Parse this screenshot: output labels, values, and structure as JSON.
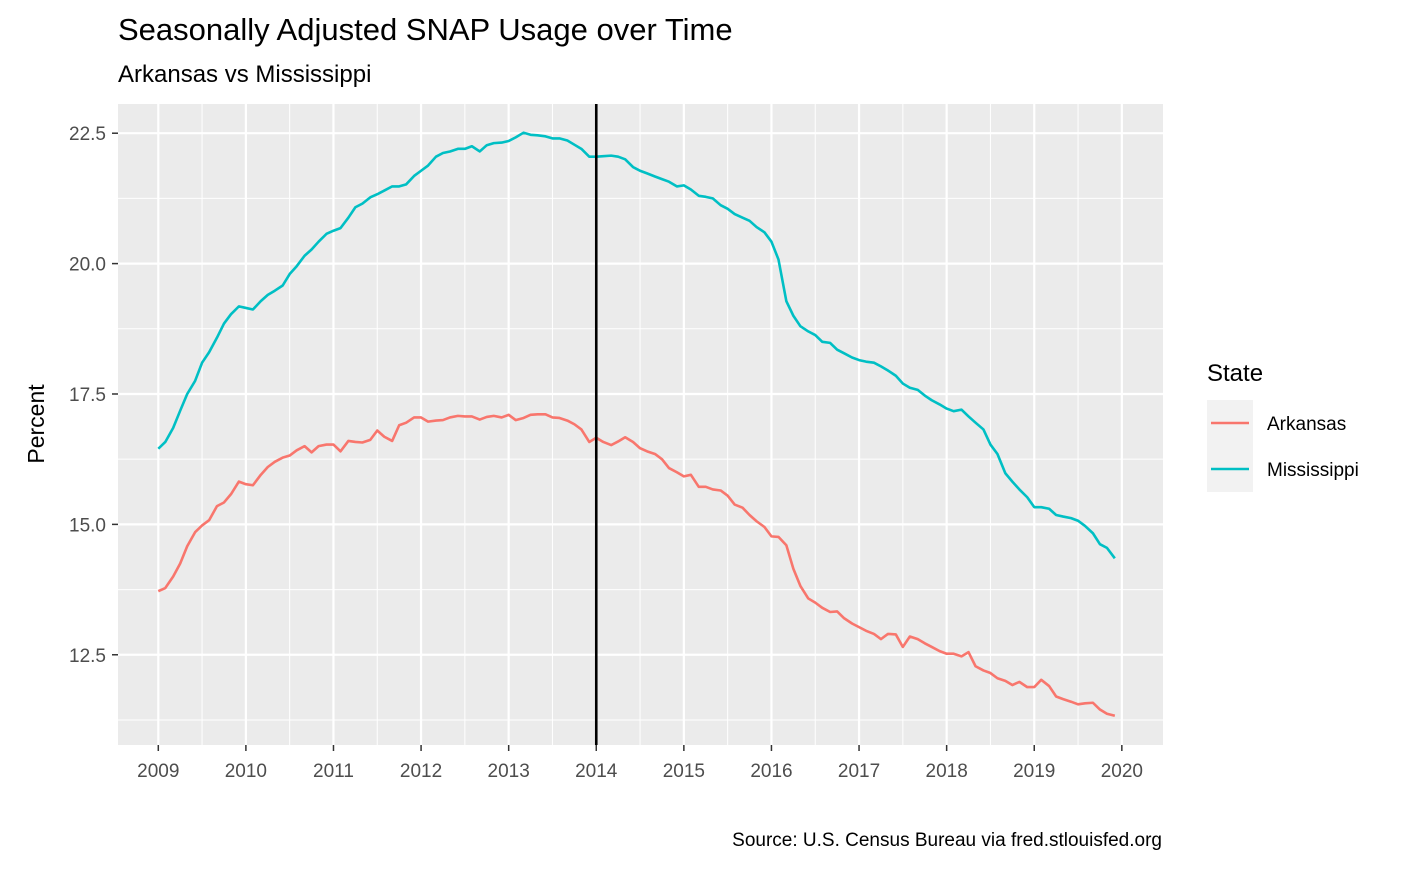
{
  "chart_data": {
    "type": "line",
    "title": "Seasonally Adjusted SNAP Usage over Time",
    "subtitle": "Arkansas vs Mississippi",
    "xlabel": "",
    "ylabel": "Percent",
    "caption": "Source: U.S. Census Bureau via fred.stlouisfed.org",
    "xlim": [
      2008.54,
      2020.47
    ],
    "ylim": [
      10.77,
      23.06
    ],
    "x_ticks": [
      2009,
      2010,
      2011,
      2012,
      2013,
      2014,
      2015,
      2016,
      2017,
      2018,
      2019,
      2020
    ],
    "x_tick_labels": [
      "2009",
      "2010",
      "2011",
      "2012",
      "2013",
      "2014",
      "2015",
      "2016",
      "2017",
      "2018",
      "2019",
      "2020"
    ],
    "y_ticks": [
      12.5,
      15.0,
      17.5,
      20.0,
      22.5
    ],
    "y_tick_labels": [
      "12.5",
      "15.0",
      "17.5",
      "20.0",
      "22.5"
    ],
    "vline_x": 2014.0,
    "vline_color": "#000000",
    "grid": true,
    "panel_background": "#ebebeb",
    "legend": {
      "title": "State",
      "position": "right"
    },
    "series": [
      {
        "name": "Arkansas",
        "color": "#f8766d",
        "points": [
          [
            2009.0,
            13.72
          ],
          [
            2009.08,
            13.78
          ],
          [
            2009.17,
            14.0
          ],
          [
            2009.25,
            14.25
          ],
          [
            2009.33,
            14.58
          ],
          [
            2009.42,
            14.85
          ],
          [
            2009.5,
            14.98
          ],
          [
            2009.58,
            15.08
          ],
          [
            2009.67,
            15.35
          ],
          [
            2009.75,
            15.42
          ],
          [
            2009.83,
            15.58
          ],
          [
            2009.92,
            15.82
          ],
          [
            2010.0,
            15.77
          ],
          [
            2010.08,
            15.75
          ],
          [
            2010.17,
            15.95
          ],
          [
            2010.25,
            16.1
          ],
          [
            2010.33,
            16.2
          ],
          [
            2010.42,
            16.28
          ],
          [
            2010.5,
            16.32
          ],
          [
            2010.58,
            16.42
          ],
          [
            2010.67,
            16.5
          ],
          [
            2010.75,
            16.38
          ],
          [
            2010.83,
            16.5
          ],
          [
            2010.92,
            16.53
          ],
          [
            2011.0,
            16.53
          ],
          [
            2011.08,
            16.4
          ],
          [
            2011.17,
            16.6
          ],
          [
            2011.25,
            16.58
          ],
          [
            2011.33,
            16.57
          ],
          [
            2011.42,
            16.62
          ],
          [
            2011.5,
            16.8
          ],
          [
            2011.58,
            16.68
          ],
          [
            2011.67,
            16.6
          ],
          [
            2011.75,
            16.9
          ],
          [
            2011.83,
            16.95
          ],
          [
            2011.92,
            17.05
          ],
          [
            2012.0,
            17.05
          ],
          [
            2012.08,
            16.97
          ],
          [
            2012.17,
            16.99
          ],
          [
            2012.25,
            17.0
          ],
          [
            2012.33,
            17.05
          ],
          [
            2012.42,
            17.08
          ],
          [
            2012.5,
            17.07
          ],
          [
            2012.58,
            17.07
          ],
          [
            2012.67,
            17.01
          ],
          [
            2012.75,
            17.06
          ],
          [
            2012.83,
            17.08
          ],
          [
            2012.92,
            17.05
          ],
          [
            2013.0,
            17.1
          ],
          [
            2013.08,
            17.0
          ],
          [
            2013.17,
            17.04
          ],
          [
            2013.25,
            17.1
          ],
          [
            2013.33,
            17.11
          ],
          [
            2013.42,
            17.11
          ],
          [
            2013.5,
            17.05
          ],
          [
            2013.58,
            17.04
          ],
          [
            2013.67,
            16.99
          ],
          [
            2013.75,
            16.92
          ],
          [
            2013.83,
            16.82
          ],
          [
            2013.92,
            16.58
          ],
          [
            2014.0,
            16.66
          ],
          [
            2014.08,
            16.58
          ],
          [
            2014.17,
            16.52
          ],
          [
            2014.25,
            16.59
          ],
          [
            2014.33,
            16.67
          ],
          [
            2014.42,
            16.58
          ],
          [
            2014.5,
            16.46
          ],
          [
            2014.58,
            16.4
          ],
          [
            2014.67,
            16.35
          ],
          [
            2014.75,
            16.25
          ],
          [
            2014.83,
            16.08
          ],
          [
            2014.92,
            16.0
          ],
          [
            2015.0,
            15.92
          ],
          [
            2015.08,
            15.95
          ],
          [
            2015.17,
            15.72
          ],
          [
            2015.25,
            15.72
          ],
          [
            2015.33,
            15.67
          ],
          [
            2015.42,
            15.65
          ],
          [
            2015.5,
            15.55
          ],
          [
            2015.58,
            15.38
          ],
          [
            2015.67,
            15.32
          ],
          [
            2015.75,
            15.18
          ],
          [
            2015.83,
            15.06
          ],
          [
            2015.92,
            14.95
          ],
          [
            2016.0,
            14.77
          ],
          [
            2016.08,
            14.76
          ],
          [
            2016.17,
            14.6
          ],
          [
            2016.25,
            14.15
          ],
          [
            2016.33,
            13.82
          ],
          [
            2016.42,
            13.58
          ],
          [
            2016.5,
            13.5
          ],
          [
            2016.58,
            13.4
          ],
          [
            2016.67,
            13.32
          ],
          [
            2016.75,
            13.33
          ],
          [
            2016.83,
            13.2
          ],
          [
            2016.92,
            13.1
          ],
          [
            2017.0,
            13.03
          ],
          [
            2017.08,
            12.96
          ],
          [
            2017.17,
            12.9
          ],
          [
            2017.25,
            12.8
          ],
          [
            2017.33,
            12.9
          ],
          [
            2017.42,
            12.89
          ],
          [
            2017.5,
            12.65
          ],
          [
            2017.58,
            12.85
          ],
          [
            2017.67,
            12.8
          ],
          [
            2017.75,
            12.72
          ],
          [
            2017.83,
            12.65
          ],
          [
            2017.92,
            12.57
          ],
          [
            2018.0,
            12.52
          ],
          [
            2018.08,
            12.52
          ],
          [
            2018.17,
            12.47
          ],
          [
            2018.25,
            12.55
          ],
          [
            2018.33,
            12.28
          ],
          [
            2018.42,
            12.2
          ],
          [
            2018.5,
            12.15
          ],
          [
            2018.58,
            12.05
          ],
          [
            2018.67,
            12.0
          ],
          [
            2018.75,
            11.92
          ],
          [
            2018.83,
            11.98
          ],
          [
            2018.92,
            11.88
          ],
          [
            2019.0,
            11.88
          ],
          [
            2019.08,
            12.02
          ],
          [
            2019.17,
            11.9
          ],
          [
            2019.25,
            11.7
          ],
          [
            2019.33,
            11.65
          ],
          [
            2019.42,
            11.6
          ],
          [
            2019.5,
            11.55
          ],
          [
            2019.58,
            11.57
          ],
          [
            2019.67,
            11.58
          ],
          [
            2019.75,
            11.45
          ],
          [
            2019.83,
            11.37
          ],
          [
            2019.92,
            11.33
          ]
        ]
      },
      {
        "name": "Mississippi",
        "color": "#00bfc4",
        "points": [
          [
            2009.0,
            16.45
          ],
          [
            2009.08,
            16.58
          ],
          [
            2009.17,
            16.85
          ],
          [
            2009.25,
            17.18
          ],
          [
            2009.33,
            17.5
          ],
          [
            2009.42,
            17.75
          ],
          [
            2009.5,
            18.1
          ],
          [
            2009.58,
            18.3
          ],
          [
            2009.67,
            18.58
          ],
          [
            2009.75,
            18.85
          ],
          [
            2009.83,
            19.03
          ],
          [
            2009.92,
            19.18
          ],
          [
            2010.0,
            19.15
          ],
          [
            2010.08,
            19.12
          ],
          [
            2010.17,
            19.28
          ],
          [
            2010.25,
            19.4
          ],
          [
            2010.33,
            19.48
          ],
          [
            2010.42,
            19.58
          ],
          [
            2010.5,
            19.8
          ],
          [
            2010.58,
            19.95
          ],
          [
            2010.67,
            20.15
          ],
          [
            2010.75,
            20.27
          ],
          [
            2010.83,
            20.42
          ],
          [
            2010.92,
            20.57
          ],
          [
            2011.0,
            20.63
          ],
          [
            2011.08,
            20.68
          ],
          [
            2011.17,
            20.88
          ],
          [
            2011.25,
            21.08
          ],
          [
            2011.33,
            21.15
          ],
          [
            2011.42,
            21.27
          ],
          [
            2011.5,
            21.33
          ],
          [
            2011.58,
            21.4
          ],
          [
            2011.67,
            21.48
          ],
          [
            2011.75,
            21.48
          ],
          [
            2011.83,
            21.52
          ],
          [
            2011.92,
            21.68
          ],
          [
            2012.0,
            21.78
          ],
          [
            2012.08,
            21.88
          ],
          [
            2012.17,
            22.05
          ],
          [
            2012.25,
            22.12
          ],
          [
            2012.33,
            22.15
          ],
          [
            2012.42,
            22.2
          ],
          [
            2012.5,
            22.2
          ],
          [
            2012.58,
            22.25
          ],
          [
            2012.67,
            22.15
          ],
          [
            2012.75,
            22.27
          ],
          [
            2012.83,
            22.31
          ],
          [
            2012.92,
            22.32
          ],
          [
            2013.0,
            22.35
          ],
          [
            2013.08,
            22.42
          ],
          [
            2013.17,
            22.51
          ],
          [
            2013.25,
            22.47
          ],
          [
            2013.33,
            22.46
          ],
          [
            2013.42,
            22.44
          ],
          [
            2013.5,
            22.4
          ],
          [
            2013.58,
            22.4
          ],
          [
            2013.67,
            22.36
          ],
          [
            2013.75,
            22.28
          ],
          [
            2013.83,
            22.2
          ],
          [
            2013.92,
            22.05
          ],
          [
            2014.0,
            22.05
          ],
          [
            2014.08,
            22.06
          ],
          [
            2014.17,
            22.07
          ],
          [
            2014.25,
            22.05
          ],
          [
            2014.33,
            22.0
          ],
          [
            2014.42,
            21.85
          ],
          [
            2014.5,
            21.78
          ],
          [
            2014.58,
            21.73
          ],
          [
            2014.67,
            21.67
          ],
          [
            2014.75,
            21.62
          ],
          [
            2014.83,
            21.57
          ],
          [
            2014.92,
            21.48
          ],
          [
            2015.0,
            21.5
          ],
          [
            2015.08,
            21.42
          ],
          [
            2015.17,
            21.3
          ],
          [
            2015.25,
            21.28
          ],
          [
            2015.33,
            21.25
          ],
          [
            2015.42,
            21.12
          ],
          [
            2015.5,
            21.05
          ],
          [
            2015.58,
            20.95
          ],
          [
            2015.67,
            20.88
          ],
          [
            2015.75,
            20.82
          ],
          [
            2015.83,
            20.7
          ],
          [
            2015.92,
            20.6
          ],
          [
            2016.0,
            20.42
          ],
          [
            2016.08,
            20.08
          ],
          [
            2016.17,
            19.28
          ],
          [
            2016.25,
            19.0
          ],
          [
            2016.33,
            18.8
          ],
          [
            2016.42,
            18.7
          ],
          [
            2016.5,
            18.63
          ],
          [
            2016.58,
            18.5
          ],
          [
            2016.67,
            18.48
          ],
          [
            2016.75,
            18.35
          ],
          [
            2016.83,
            18.28
          ],
          [
            2016.92,
            18.2
          ],
          [
            2017.0,
            18.15
          ],
          [
            2017.08,
            18.12
          ],
          [
            2017.17,
            18.1
          ],
          [
            2017.25,
            18.03
          ],
          [
            2017.33,
            17.95
          ],
          [
            2017.42,
            17.85
          ],
          [
            2017.5,
            17.7
          ],
          [
            2017.58,
            17.62
          ],
          [
            2017.67,
            17.58
          ],
          [
            2017.75,
            17.47
          ],
          [
            2017.83,
            17.38
          ],
          [
            2017.92,
            17.3
          ],
          [
            2018.0,
            17.22
          ],
          [
            2018.08,
            17.17
          ],
          [
            2018.17,
            17.2
          ],
          [
            2018.25,
            17.07
          ],
          [
            2018.33,
            16.95
          ],
          [
            2018.42,
            16.82
          ],
          [
            2018.5,
            16.53
          ],
          [
            2018.58,
            16.35
          ],
          [
            2018.67,
            15.98
          ],
          [
            2018.75,
            15.82
          ],
          [
            2018.83,
            15.67
          ],
          [
            2018.92,
            15.52
          ],
          [
            2019.0,
            15.33
          ],
          [
            2019.08,
            15.33
          ],
          [
            2019.17,
            15.3
          ],
          [
            2019.25,
            15.18
          ],
          [
            2019.33,
            15.15
          ],
          [
            2019.42,
            15.12
          ],
          [
            2019.5,
            15.07
          ],
          [
            2019.58,
            14.97
          ],
          [
            2019.67,
            14.83
          ],
          [
            2019.75,
            14.62
          ],
          [
            2019.83,
            14.55
          ],
          [
            2019.92,
            14.35
          ]
        ]
      }
    ]
  }
}
